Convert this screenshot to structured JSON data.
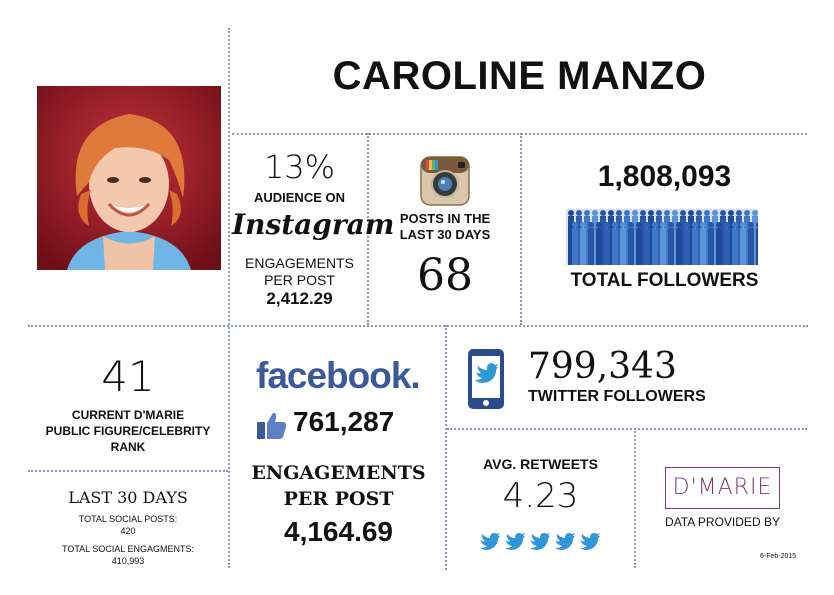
{
  "header": {
    "name": "CAROLINE MANZO"
  },
  "instagram": {
    "audience_percent": "13%",
    "audience_label": "AUDIENCE ON",
    "platform_logo_text": "Instagram",
    "engagements_label_1": "ENGAGEMENTS",
    "engagements_label_2": "PER POST",
    "engagements_value": "2,412.29",
    "posts_label_1": "POSTS IN THE",
    "posts_label_2": "LAST 30 DAYS",
    "posts_value": "68"
  },
  "followers": {
    "value": "1,808,093",
    "label": "TOTAL FOLLOWERS",
    "color": "#2f5fb0"
  },
  "rank": {
    "value": "41",
    "label_1": "CURRENT D'MARIE",
    "label_2": "PUBLIC FIGURE/CELEBRITY",
    "label_3": "RANK"
  },
  "last30": {
    "title": "LAST 30 DAYS",
    "posts_label": "TOTAL SOCIAL POSTS:",
    "posts_value": "420",
    "engagements_label": "TOTAL SOCIAL ENGAGMENTS:",
    "engagements_value": "410,993"
  },
  "facebook": {
    "logo_text": "facebook.",
    "likes_value": "761,287",
    "engagements_label_1": "ENGAGEMENTS",
    "engagements_label_2": "PER POST",
    "engagements_value": "4,164.69",
    "brand_color": "#3b5998"
  },
  "twitter": {
    "followers_value": "799,343",
    "followers_label": "TWITTER FOLLOWERS",
    "avg_retweets_label": "AVG. RETWEETS",
    "avg_retweets_value": "4.23",
    "brand_color": "#2f97d8"
  },
  "footer": {
    "logo_text": "D'MARIE",
    "provided_by": "DATA PROVIDED BY",
    "date": "6-Feb-2015"
  }
}
